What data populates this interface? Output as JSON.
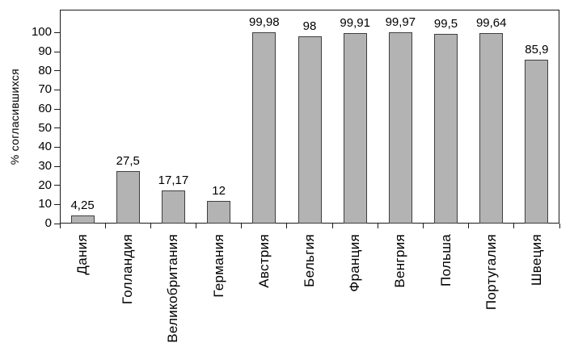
{
  "chart_data": {
    "type": "bar",
    "title": "",
    "xlabel": "",
    "ylabel": "% согласившихся",
    "categories": [
      "Дания",
      "Голландия",
      "Великобритания",
      "Германия",
      "Австрия",
      "Бельгия",
      "Франция",
      "Венгрия",
      "Польша",
      "Португалия",
      "Швеция"
    ],
    "values": [
      4.25,
      27.5,
      17.17,
      12,
      99.98,
      98,
      99.91,
      99.97,
      99.5,
      99.64,
      85.9
    ],
    "value_labels": [
      "4,25",
      "27,5",
      "17,17",
      "12",
      "99,98",
      "98",
      "99,91",
      "99,97",
      "99,5",
      "99,64",
      "85,9"
    ],
    "yticks": [
      0,
      10,
      20,
      30,
      40,
      50,
      60,
      70,
      80,
      90,
      100
    ],
    "ytick_labels": [
      "0",
      "10",
      "20",
      "30",
      "40",
      "50",
      "60",
      "70",
      "80",
      "90",
      "100"
    ],
    "ylim": [
      0,
      112
    ],
    "grid": false,
    "legend_position": "none",
    "colors": {
      "bar_fill": "#b3b3b3",
      "bar_border": "#3f3f3f",
      "axis": "#1a1a1a",
      "text": "#000000",
      "background": "#ffffff"
    }
  }
}
